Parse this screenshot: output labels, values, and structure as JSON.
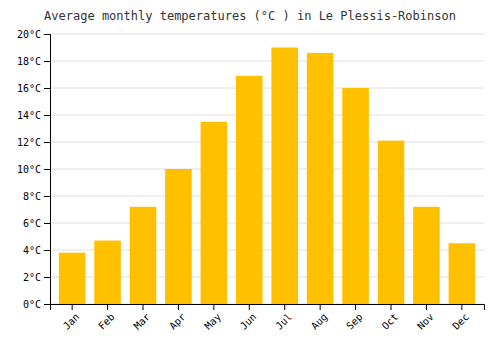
{
  "chart_data": {
    "type": "bar",
    "title": "Average monthly temperatures (°C ) in Le Plessis-Robinson",
    "categories": [
      "Jan",
      "Feb",
      "Mar",
      "Apr",
      "May",
      "Jun",
      "Jul",
      "Aug",
      "Sep",
      "Oct",
      "Nov",
      "Dec"
    ],
    "values": [
      3.8,
      4.7,
      7.2,
      10.0,
      13.5,
      16.9,
      19.0,
      18.6,
      16.0,
      12.1,
      7.2,
      4.5
    ],
    "color": "#FFC000",
    "ylim": [
      0,
      20
    ],
    "yticks": [
      {
        "value": 0,
        "label": "0°C"
      },
      {
        "value": 2,
        "label": "2°C"
      },
      {
        "value": 4,
        "label": "4°C"
      },
      {
        "value": 6,
        "label": "6°C"
      },
      {
        "value": 8,
        "label": "8°C"
      },
      {
        "value": 10,
        "label": "10°C"
      },
      {
        "value": 12,
        "label": "12°C"
      },
      {
        "value": 14,
        "label": "14°C"
      },
      {
        "value": 16,
        "label": "16°C"
      },
      {
        "value": 18,
        "label": "18°C"
      },
      {
        "value": 20,
        "label": "20°C"
      }
    ],
    "grid": true
  }
}
